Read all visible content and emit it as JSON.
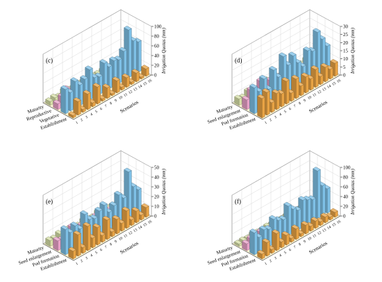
{
  "figure": {
    "background": "#ffffff",
    "floor_color": "#fbf3d2",
    "wall_color": "#ffffff",
    "grid_color": "#d8d8d8",
    "edge_color": "#333333"
  },
  "chart_data": [
    {
      "type": "bar3d",
      "panel_label": "(c)",
      "zlabel": "Irrigation Quotas (mm)",
      "scenario_axis_label": "Scenarios",
      "stages": [
        "Establishment",
        "Vegetative",
        "Reproductive",
        "Maturity"
      ],
      "stage_colors": [
        "#e8a344",
        "#7ec0e6",
        "#e8a2c8",
        "#d6dfa8"
      ],
      "scenarios": [
        "1",
        "2",
        "3",
        "4",
        "5",
        "6",
        "7",
        "8",
        "9",
        "10",
        "11",
        "12",
        "13",
        "14",
        "15",
        "16"
      ],
      "zlim": [
        0,
        100
      ],
      "zticks": [
        0,
        20,
        40,
        60,
        80,
        100
      ],
      "grid": true,
      "values": [
        [
          5,
          28,
          6,
          32,
          8,
          35,
          5,
          22,
          4,
          25,
          6,
          20,
          5,
          18,
          4,
          15
        ],
        [
          50,
          38,
          55,
          42,
          48,
          62,
          40,
          36,
          58,
          45,
          52,
          48,
          60,
          98,
          70,
          62
        ],
        [
          12,
          20,
          30,
          18,
          25,
          15,
          22,
          28,
          18,
          12,
          20,
          15,
          10,
          18,
          12,
          8
        ],
        [
          8,
          10,
          6,
          12,
          9,
          7,
          10,
          8,
          6,
          9,
          7,
          8,
          5,
          6,
          7,
          5
        ]
      ]
    },
    {
      "type": "bar3d",
      "panel_label": "(d)",
      "zlabel": "Irrigation Quotas (mm)",
      "scenario_axis_label": "Scenarios",
      "stages": [
        "Establishment",
        "Pod formation",
        "Seed enlargement",
        "Maturity"
      ],
      "stage_colors": [
        "#e8a344",
        "#7ec0e6",
        "#e8a2c8",
        "#d6dfa8"
      ],
      "scenarios": [
        "1",
        "2",
        "3",
        "4",
        "5",
        "6",
        "7",
        "8",
        "9",
        "10",
        "11",
        "12",
        "13",
        "14",
        "15",
        "16"
      ],
      "zlim": [
        0,
        30
      ],
      "zticks": [
        0,
        5,
        10,
        15,
        20,
        25,
        30
      ],
      "grid": true,
      "values": [
        [
          12,
          14,
          6,
          10,
          8,
          14,
          5,
          12,
          6,
          10,
          7,
          11,
          5,
          9,
          6,
          8
        ],
        [
          16,
          12,
          18,
          10,
          20,
          14,
          25,
          18,
          22,
          16,
          12,
          20,
          18,
          28,
          22,
          16
        ],
        [
          6,
          10,
          8,
          12,
          7,
          9,
          10,
          8,
          6,
          9,
          5,
          7,
          6,
          8,
          5,
          6
        ],
        [
          4,
          3,
          5,
          4,
          3,
          4,
          5,
          3,
          4,
          3,
          4,
          3,
          2,
          3,
          4,
          2
        ]
      ]
    },
    {
      "type": "bar3d",
      "panel_label": "(e)",
      "zlabel": "Irrigation Quotas (mm)",
      "scenario_axis_label": "Scenarios",
      "stages": [
        "Establishment",
        "Pod formation",
        "Seed enlargement",
        "Maturity"
      ],
      "stage_colors": [
        "#e8a344",
        "#7ec0e6",
        "#e8a2c8",
        "#d6dfa8"
      ],
      "scenarios": [
        "1",
        "2",
        "3",
        "4",
        "5",
        "6",
        "7",
        "8",
        "9",
        "10",
        "11",
        "12",
        "13",
        "14",
        "15",
        "16"
      ],
      "zlim": [
        0,
        50
      ],
      "zticks": [
        0,
        10,
        20,
        30,
        40,
        50
      ],
      "grid": true,
      "values": [
        [
          8,
          22,
          6,
          25,
          10,
          18,
          7,
          20,
          5,
          15,
          8,
          18,
          6,
          12,
          5,
          10
        ],
        [
          26,
          20,
          24,
          18,
          30,
          22,
          20,
          25,
          28,
          18,
          22,
          30,
          24,
          48,
          30,
          24
        ],
        [
          10,
          8,
          12,
          15,
          9,
          11,
          8,
          10,
          12,
          9,
          7,
          10,
          8,
          6,
          9,
          7
        ],
        [
          6,
          5,
          7,
          4,
          6,
          5,
          4,
          6,
          5,
          4,
          6,
          3,
          5,
          4,
          3,
          4
        ]
      ]
    },
    {
      "type": "bar3d",
      "panel_label": "(f)",
      "zlabel": "Irrigation Quotas (mm)",
      "scenario_axis_label": "Scenarios",
      "stages": [
        "Establishment",
        "Pod formation",
        "Seed enlargement",
        "Maturity"
      ],
      "stage_colors": [
        "#e8a344",
        "#7ec0e6",
        "#e8a2c8",
        "#d6dfa8"
      ],
      "scenarios": [
        "1",
        "2",
        "3",
        "4",
        "5",
        "6",
        "7",
        "8",
        "9",
        "10",
        "11",
        "12",
        "13",
        "14",
        "15",
        "16"
      ],
      "zlim": [
        0,
        100
      ],
      "zticks": [
        0,
        20,
        40,
        60,
        80,
        100
      ],
      "grid": true,
      "values": [
        [
          10,
          28,
          8,
          35,
          12,
          20,
          8,
          22,
          6,
          18,
          10,
          15,
          8,
          12,
          6,
          10
        ],
        [
          45,
          30,
          40,
          35,
          50,
          42,
          38,
          60,
          48,
          40,
          55,
          50,
          45,
          98,
          62,
          50
        ],
        [
          14,
          18,
          10,
          20,
          12,
          16,
          10,
          14,
          8,
          12,
          10,
          8,
          12,
          9,
          7,
          8
        ],
        [
          5,
          6,
          4,
          7,
          5,
          4,
          6,
          5,
          3,
          4,
          5,
          3,
          4,
          3,
          5,
          3
        ]
      ]
    }
  ]
}
